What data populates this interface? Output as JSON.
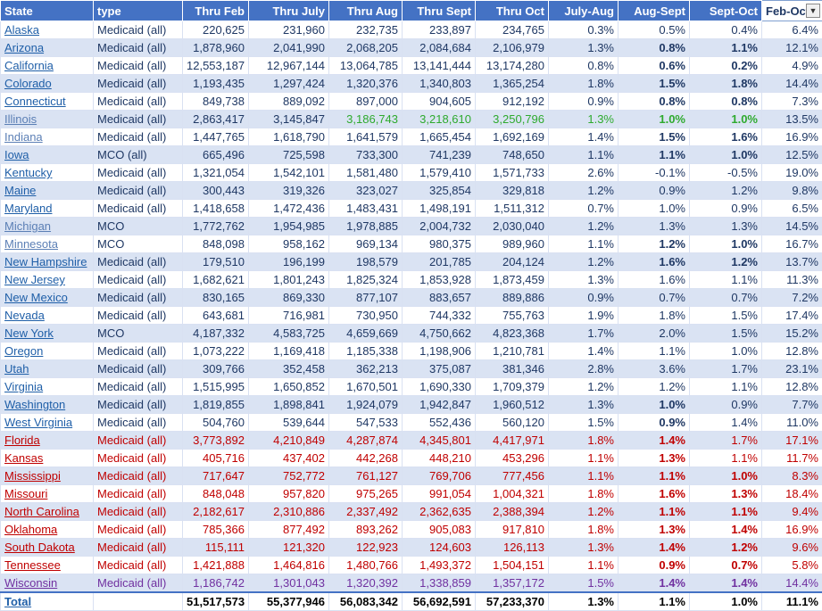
{
  "headers": [
    "State",
    "type",
    "Thru Feb",
    "Thru July",
    "Thru Aug",
    "Thru Sept",
    "Thru Oct",
    "July-Aug",
    "Aug-Sept",
    "Sept-Oct",
    "Feb-Oct"
  ],
  "filter_icon": "dropdown-arrow-icon",
  "rows": [
    {
      "c": [
        "Alaska",
        "Medicaid (all)",
        "220,625",
        "231,960",
        "232,735",
        "233,897",
        "234,765",
        "0.3%",
        "0.5%",
        "0.4%",
        "6.4%"
      ],
      "b": []
    },
    {
      "c": [
        "Arizona",
        "Medicaid (all)",
        "1,878,960",
        "2,041,990",
        "2,068,205",
        "2,084,684",
        "2,106,979",
        "1.3%",
        "0.8%",
        "1.1%",
        "12.1%"
      ],
      "b": [
        8,
        9
      ]
    },
    {
      "c": [
        "California",
        "Medicaid (all)",
        "12,553,187",
        "12,967,144",
        "13,064,785",
        "13,141,444",
        "13,174,280",
        "0.8%",
        "0.6%",
        "0.2%",
        "4.9%"
      ],
      "b": [
        8,
        9
      ]
    },
    {
      "c": [
        "Colorado",
        "Medicaid (all)",
        "1,193,435",
        "1,297,424",
        "1,320,376",
        "1,340,803",
        "1,365,254",
        "1.8%",
        "1.5%",
        "1.8%",
        "14.4%"
      ],
      "b": [
        8,
        9
      ]
    },
    {
      "c": [
        "Connecticut",
        "Medicaid (all)",
        "849,738",
        "889,092",
        "897,000",
        "904,605",
        "912,192",
        "0.9%",
        "0.8%",
        "0.8%",
        "7.3%"
      ],
      "b": [
        8,
        9
      ]
    },
    {
      "c": [
        "Illinois",
        "Medicaid (all)",
        "2,863,417",
        "3,145,847",
        "3,186,743",
        "3,218,610",
        "3,250,796",
        "1.3%",
        "1.0%",
        "1.0%",
        "13.5%"
      ],
      "b": [
        8,
        9
      ],
      "cls": "grn mut"
    },
    {
      "c": [
        "Indiana",
        "Medicaid (all)",
        "1,447,765",
        "1,618,790",
        "1,641,579",
        "1,665,454",
        "1,692,169",
        "1.4%",
        "1.5%",
        "1.6%",
        "16.9%"
      ],
      "b": [
        8,
        9
      ],
      "cls": "mut"
    },
    {
      "c": [
        "Iowa",
        "MCO (all)",
        "665,496",
        "725,598",
        "733,300",
        "741,239",
        "748,650",
        "1.1%",
        "1.1%",
        "1.0%",
        "12.5%"
      ],
      "b": [
        8,
        9
      ]
    },
    {
      "c": [
        "Kentucky",
        "Medicaid (all)",
        "1,321,054",
        "1,542,101",
        "1,581,480",
        "1,579,410",
        "1,571,733",
        "2.6%",
        "-0.1%",
        "-0.5%",
        "19.0%"
      ],
      "b": []
    },
    {
      "c": [
        "Maine",
        "Medicaid (all)",
        "300,443",
        "319,326",
        "323,027",
        "325,854",
        "329,818",
        "1.2%",
        "0.9%",
        "1.2%",
        "9.8%"
      ],
      "b": []
    },
    {
      "c": [
        "Maryland",
        "Medicaid (all)",
        "1,418,658",
        "1,472,436",
        "1,483,431",
        "1,498,191",
        "1,511,312",
        "0.7%",
        "1.0%",
        "0.9%",
        "6.5%"
      ],
      "b": []
    },
    {
      "c": [
        "Michigan",
        "MCO",
        "1,772,762",
        "1,954,985",
        "1,978,885",
        "2,004,732",
        "2,030,040",
        "1.2%",
        "1.3%",
        "1.3%",
        "14.5%"
      ],
      "b": [],
      "cls": "mut"
    },
    {
      "c": [
        "Minnesota",
        "MCO",
        "848,098",
        "958,162",
        "969,134",
        "980,375",
        "989,960",
        "1.1%",
        "1.2%",
        "1.0%",
        "16.7%"
      ],
      "b": [
        8,
        9
      ],
      "cls": "mut"
    },
    {
      "c": [
        "New Hampshire",
        "Medicaid (all)",
        "179,510",
        "196,199",
        "198,579",
        "201,785",
        "204,124",
        "1.2%",
        "1.6%",
        "1.2%",
        "13.7%"
      ],
      "b": [
        8,
        9
      ]
    },
    {
      "c": [
        "New Jersey",
        "Medicaid (all)",
        "1,682,621",
        "1,801,243",
        "1,825,324",
        "1,853,928",
        "1,873,459",
        "1.3%",
        "1.6%",
        "1.1%",
        "11.3%"
      ],
      "b": []
    },
    {
      "c": [
        "New Mexico",
        "Medicaid (all)",
        "830,165",
        "869,330",
        "877,107",
        "883,657",
        "889,886",
        "0.9%",
        "0.7%",
        "0.7%",
        "7.2%"
      ],
      "b": []
    },
    {
      "c": [
        "Nevada",
        "Medicaid (all)",
        "643,681",
        "716,981",
        "730,950",
        "744,332",
        "755,763",
        "1.9%",
        "1.8%",
        "1.5%",
        "17.4%"
      ],
      "b": []
    },
    {
      "c": [
        "New York",
        "MCO",
        "4,187,332",
        "4,583,725",
        "4,659,669",
        "4,750,662",
        "4,823,368",
        "1.7%",
        "2.0%",
        "1.5%",
        "15.2%"
      ],
      "b": []
    },
    {
      "c": [
        "Oregon",
        "Medicaid (all)",
        "1,073,222",
        "1,169,418",
        "1,185,338",
        "1,198,906",
        "1,210,781",
        "1.4%",
        "1.1%",
        "1.0%",
        "12.8%"
      ],
      "b": []
    },
    {
      "c": [
        "Utah",
        "Medicaid (all)",
        "309,766",
        "352,458",
        "362,213",
        "375,087",
        "381,346",
        "2.8%",
        "3.6%",
        "1.7%",
        "23.1%"
      ],
      "b": []
    },
    {
      "c": [
        "Virginia",
        "Medicaid (all)",
        "1,515,995",
        "1,650,852",
        "1,670,501",
        "1,690,330",
        "1,709,379",
        "1.2%",
        "1.2%",
        "1.1%",
        "12.8%"
      ],
      "b": []
    },
    {
      "c": [
        "Washington",
        "Medicaid (all)",
        "1,819,855",
        "1,898,841",
        "1,924,079",
        "1,942,847",
        "1,960,512",
        "1.3%",
        "1.0%",
        "0.9%",
        "7.7%"
      ],
      "b": [
        8
      ]
    },
    {
      "c": [
        "West Virginia",
        "Medicaid (all)",
        "504,760",
        "539,644",
        "547,533",
        "552,436",
        "560,120",
        "1.5%",
        "0.9%",
        "1.4%",
        "11.0%"
      ],
      "b": [
        8
      ]
    },
    {
      "c": [
        "Florida",
        "Medicaid (all)",
        "3,773,892",
        "4,210,849",
        "4,287,874",
        "4,345,801",
        "4,417,971",
        "1.8%",
        "1.4%",
        "1.7%",
        "17.1%"
      ],
      "b": [
        8
      ],
      "cls": "red"
    },
    {
      "c": [
        "Kansas",
        "Medicaid (all)",
        "405,716",
        "437,402",
        "442,268",
        "448,210",
        "453,296",
        "1.1%",
        "1.3%",
        "1.1%",
        "11.7%"
      ],
      "b": [
        8
      ],
      "cls": "red"
    },
    {
      "c": [
        "Mississippi",
        "Medicaid (all)",
        "717,647",
        "752,772",
        "761,127",
        "769,706",
        "777,456",
        "1.1%",
        "1.1%",
        "1.0%",
        "8.3%"
      ],
      "b": [
        8,
        9
      ],
      "cls": "red"
    },
    {
      "c": [
        "Missouri",
        "Medicaid (all)",
        "848,048",
        "957,820",
        "975,265",
        "991,054",
        "1,004,321",
        "1.8%",
        "1.6%",
        "1.3%",
        "18.4%"
      ],
      "b": [
        8,
        9
      ],
      "cls": "red"
    },
    {
      "c": [
        "North Carolina",
        "Medicaid (all)",
        "2,182,617",
        "2,310,886",
        "2,337,492",
        "2,362,635",
        "2,388,394",
        "1.2%",
        "1.1%",
        "1.1%",
        "9.4%"
      ],
      "b": [
        8,
        9
      ],
      "cls": "red"
    },
    {
      "c": [
        "Oklahoma",
        "Medicaid (all)",
        "785,366",
        "877,492",
        "893,262",
        "905,083",
        "917,810",
        "1.8%",
        "1.3%",
        "1.4%",
        "16.9%"
      ],
      "b": [
        8,
        9
      ],
      "cls": "red"
    },
    {
      "c": [
        "South Dakota",
        "Medicaid (all)",
        "115,111",
        "121,320",
        "122,923",
        "124,603",
        "126,113",
        "1.3%",
        "1.4%",
        "1.2%",
        "9.6%"
      ],
      "b": [
        8,
        9
      ],
      "cls": "red"
    },
    {
      "c": [
        "Tennessee",
        "Medicaid (all)",
        "1,421,888",
        "1,464,816",
        "1,480,766",
        "1,493,372",
        "1,504,151",
        "1.1%",
        "0.9%",
        "0.7%",
        "5.8%"
      ],
      "b": [
        8,
        9
      ],
      "cls": "red"
    },
    {
      "c": [
        "Wisconsin",
        "Medicaid (all)",
        "1,186,742",
        "1,301,043",
        "1,320,392",
        "1,338,859",
        "1,357,172",
        "1.5%",
        "1.4%",
        "1.4%",
        "14.4%"
      ],
      "b": [
        8,
        9
      ],
      "cls": "pur"
    }
  ],
  "total": {
    "c": [
      "Total",
      "",
      "51,517,573",
      "55,377,946",
      "56,083,342",
      "56,692,591",
      "57,233,370",
      "1.3%",
      "1.1%",
      "1.0%",
      "11.1%"
    ]
  }
}
